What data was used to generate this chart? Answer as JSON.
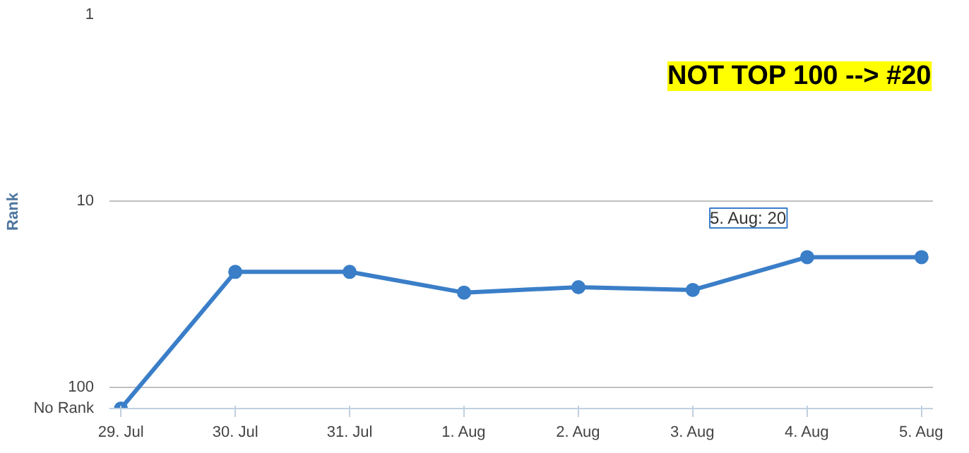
{
  "chart_data": {
    "type": "line",
    "ylabel": "Rank",
    "categories": [
      "29. Jul",
      "30. Jul",
      "31. Jul",
      "1. Aug",
      "2. Aug",
      "3. Aug",
      "4. Aug",
      "5. Aug"
    ],
    "series": [
      {
        "color": "#3a7ec8",
        "values": [
          130,
          24,
          24,
          31,
          29,
          30,
          20,
          20
        ]
      }
    ],
    "log": true,
    "ylim": [
      130,
      1
    ],
    "yticks": [
      1,
      10,
      100,
      {
        "value": 130,
        "label": "No Rank"
      }
    ],
    "grid": "y",
    "marker": "circle",
    "annotations": [
      "NOT TOP 100 --> #20",
      "5. Aug: 20"
    ]
  }
}
